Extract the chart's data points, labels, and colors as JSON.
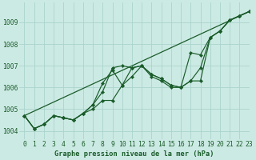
{
  "title": "Graphe pression niveau de la mer (hPa)",
  "background_color": "#cceae4",
  "grid_color": "#aad4cc",
  "line_color": "#1a5c2a",
  "marker_color": "#1a5c2a",
  "xlim": [
    -0.5,
    23
  ],
  "ylim": [
    1003.6,
    1009.9
  ],
  "xticks": [
    0,
    1,
    2,
    3,
    4,
    5,
    6,
    7,
    8,
    9,
    10,
    11,
    12,
    13,
    14,
    15,
    16,
    17,
    18,
    19,
    20,
    21,
    22,
    23
  ],
  "yticks": [
    1004,
    1005,
    1006,
    1007,
    1008,
    1009
  ],
  "series": [
    {
      "x": [
        0,
        1,
        2,
        3,
        4,
        5,
        6,
        7,
        8,
        9,
        10,
        11,
        12,
        13,
        14,
        15,
        16,
        17,
        18,
        19,
        20,
        21,
        22,
        23
      ],
      "y": [
        1004.7,
        1004.1,
        1004.3,
        1004.7,
        1004.6,
        1004.5,
        1004.8,
        1005.2,
        1005.8,
        1006.9,
        1007.0,
        1006.9,
        1007.0,
        1006.6,
        1006.4,
        1006.1,
        1006.0,
        1007.6,
        1007.5,
        1008.3,
        1008.6,
        1009.1,
        1009.3,
        1009.5
      ]
    },
    {
      "x": [
        0,
        1,
        2,
        3,
        4,
        5,
        6,
        7,
        8,
        9,
        10,
        11,
        12,
        13,
        14,
        15,
        16,
        17,
        18,
        19,
        20,
        21,
        22,
        23
      ],
      "y": [
        1004.7,
        1004.1,
        1004.3,
        1004.7,
        1004.6,
        1004.5,
        1004.8,
        1005.2,
        1006.2,
        1006.8,
        1006.1,
        1006.9,
        1007.0,
        1006.6,
        1006.4,
        1006.1,
        1006.0,
        1006.3,
        1006.3,
        1008.3,
        1008.6,
        1009.1,
        1009.3,
        1009.5
      ]
    },
    {
      "x": [
        0,
        23
      ],
      "y": [
        1004.7,
        1009.5
      ]
    },
    {
      "x": [
        0,
        1,
        2,
        3,
        4,
        5,
        6,
        7,
        8,
        9,
        10,
        11,
        12,
        13,
        14,
        15,
        16,
        17,
        18,
        19,
        20,
        21,
        22,
        23
      ],
      "y": [
        1004.7,
        1004.1,
        1004.3,
        1004.7,
        1004.6,
        1004.5,
        1004.8,
        1005.0,
        1005.4,
        1005.4,
        1006.1,
        1006.5,
        1007.0,
        1006.5,
        1006.3,
        1006.0,
        1006.0,
        1006.3,
        1006.9,
        1008.3,
        1008.6,
        1009.1,
        1009.3,
        1009.5
      ]
    }
  ],
  "tick_fontsize": 5.8
}
